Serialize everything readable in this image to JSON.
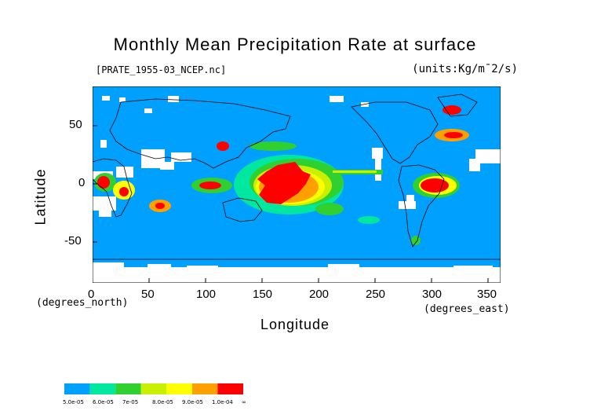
{
  "title": "Monthly Mean Precipitation Rate at surface",
  "file_label": "[PRATE_1955-03_NCEP.nc]",
  "units_label": "(units:Kg/m^-2/s)",
  "units_display": "(units:Kg/m¯2/s)",
  "xlabel": "Longitude",
  "ylabel": "Latitude",
  "x_units": "(degrees_east)",
  "y_units": "(degrees_north)",
  "x_ticks": [
    "0",
    "50",
    "100",
    "150",
    "200",
    "250",
    "300",
    "350"
  ],
  "y_ticks": [
    "50",
    "0",
    "-50"
  ],
  "colors": {
    "ocean_base": "#00a0ff",
    "land_line": "#000000",
    "no_data": "#ffffff"
  },
  "colorbar": {
    "colors": [
      "#00a0ff",
      "#00e8a0",
      "#30d030",
      "#c8f000",
      "#ffff00",
      "#ffa000",
      "#ff0000"
    ],
    "labels": [
      "5.0e-05",
      "6.0e-05",
      "7e-05",
      "8.0e-05",
      "9.0e-05",
      "1.0e-04",
      "∞"
    ]
  }
}
